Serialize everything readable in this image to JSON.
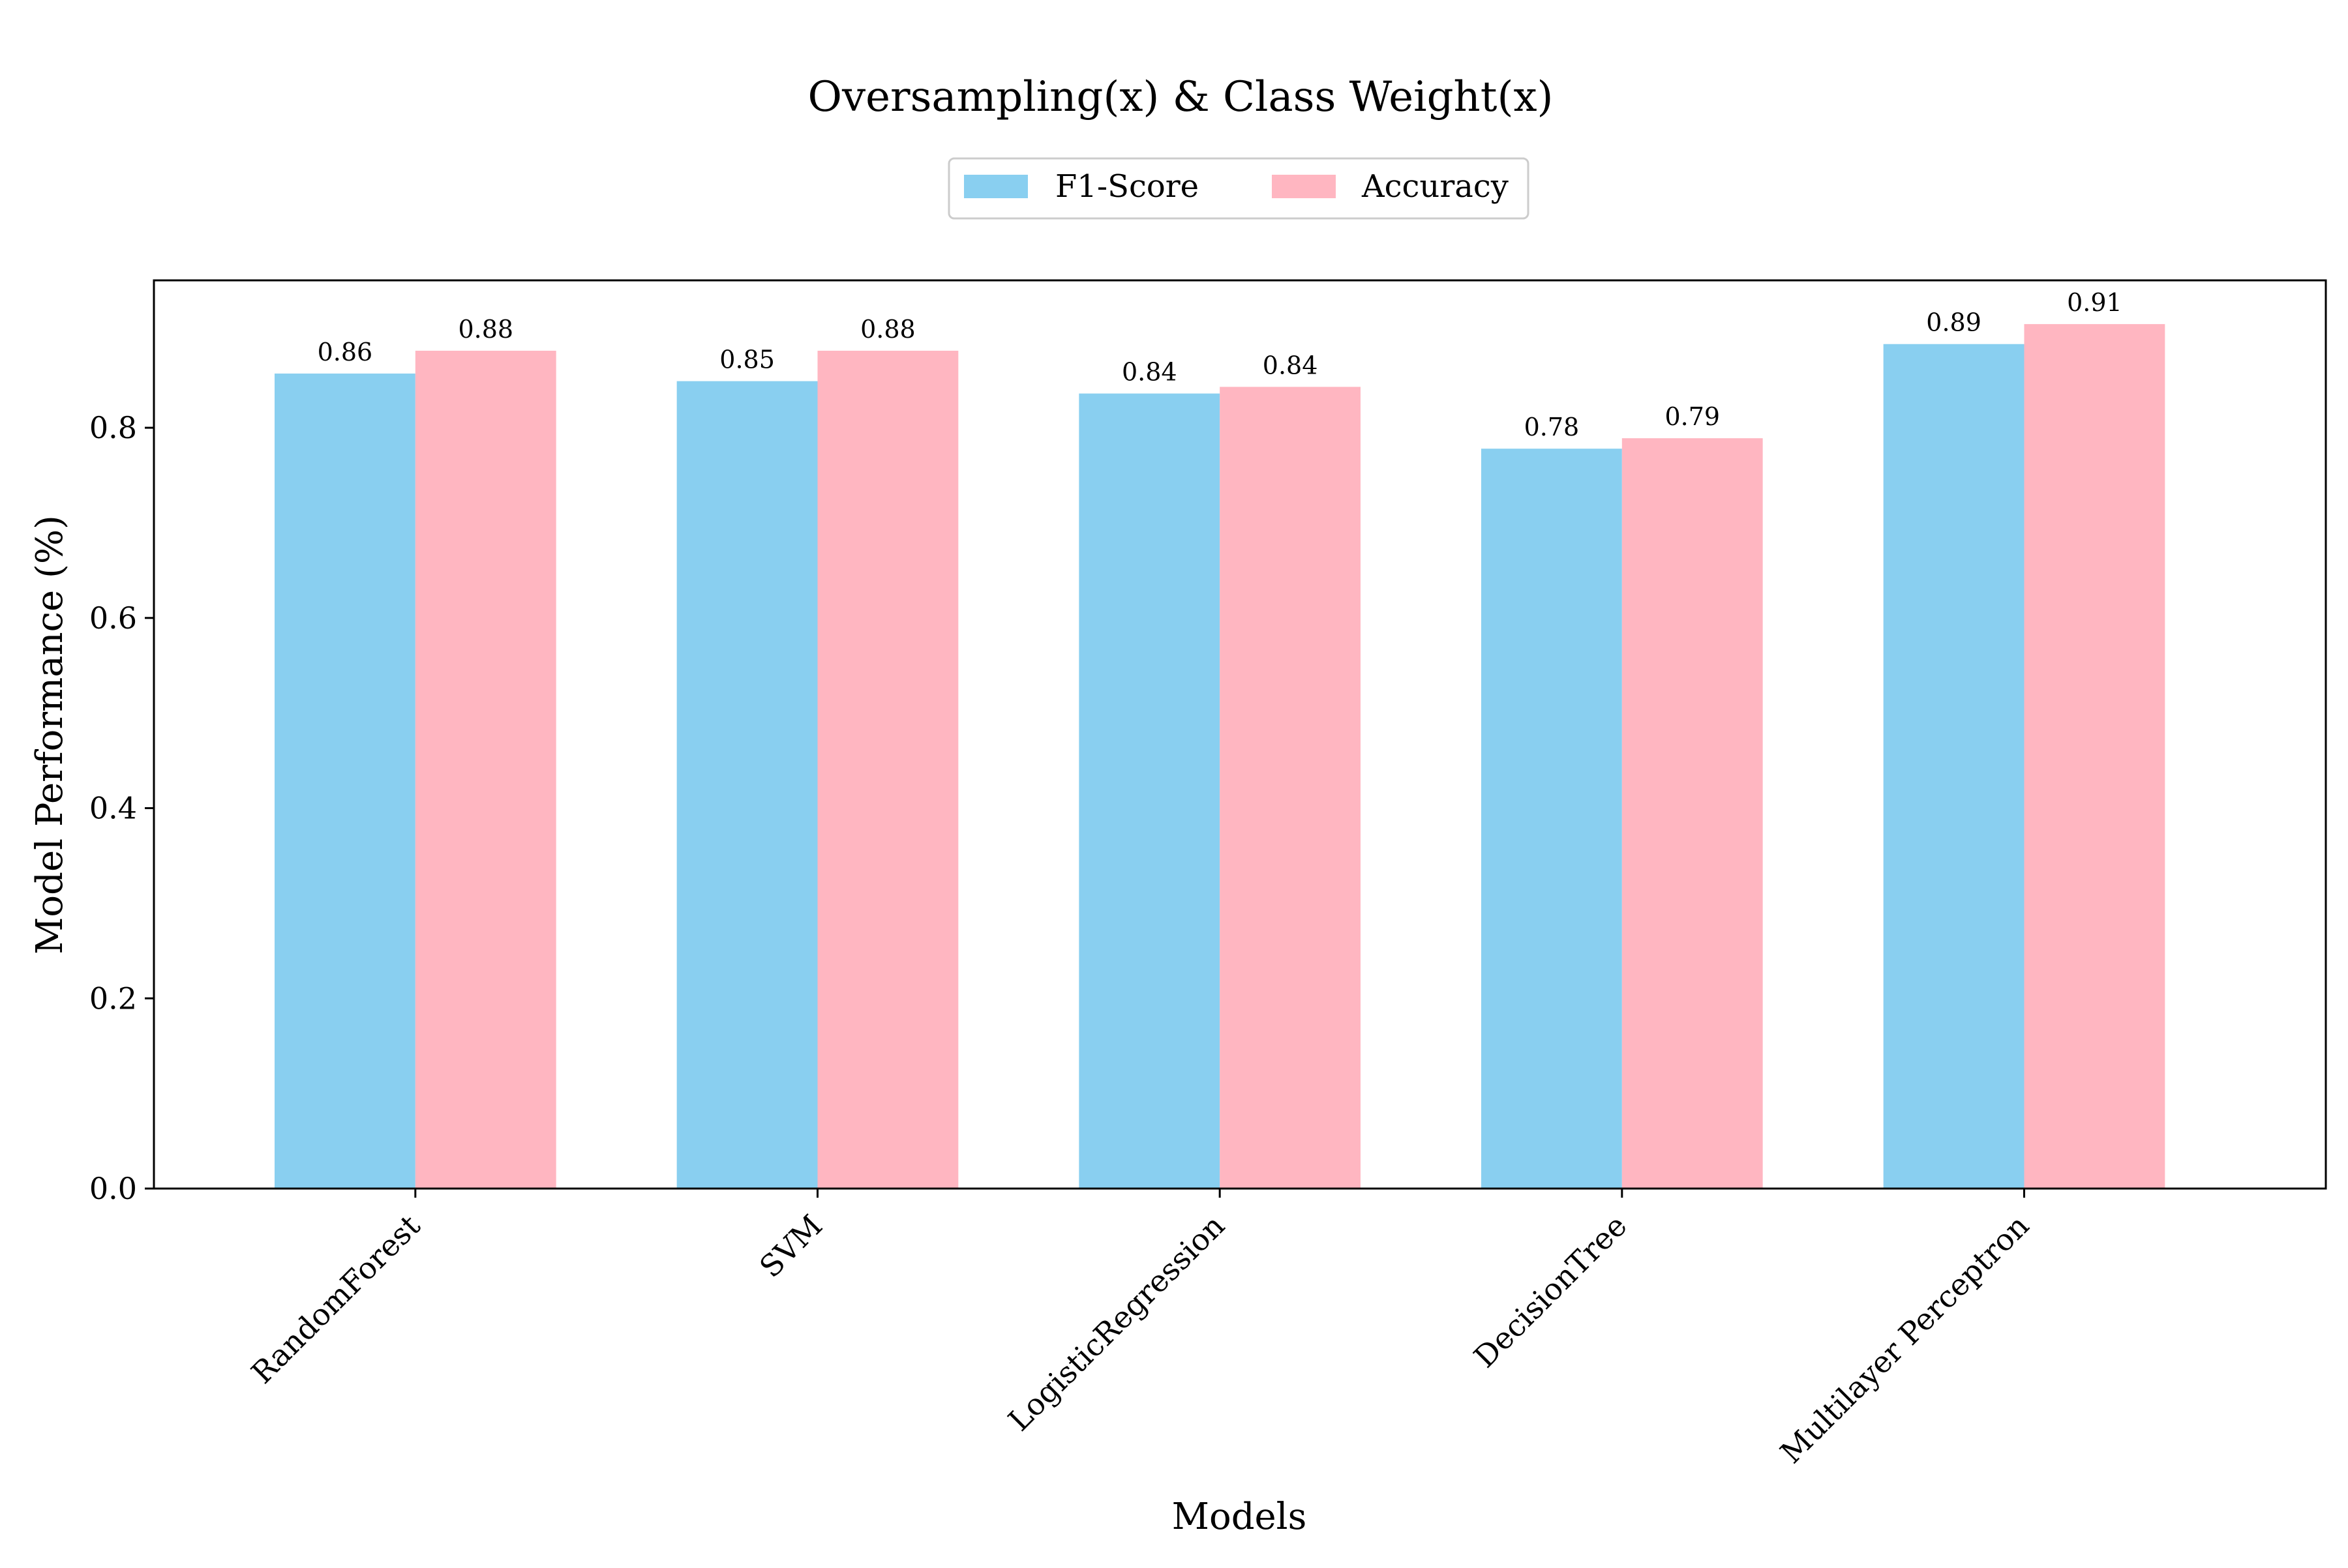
{
  "chart_data": {
    "type": "bar",
    "title": "Oversampling(x) & Class Weight(x)",
    "xlabel": "Models",
    "ylabel": "Model Performance (%)",
    "categories": [
      "RandomForest",
      "SVM",
      "LogisticRegression",
      "DecisionTree",
      "Multilayer Perceptron"
    ],
    "series": [
      {
        "name": "F1-Score",
        "color": "#89CFF0",
        "values": [
          0.857,
          0.849,
          0.836,
          0.778,
          0.888
        ],
        "labels": [
          "0.86",
          "0.85",
          "0.84",
          "0.78",
          "0.89"
        ]
      },
      {
        "name": "Accuracy",
        "color": "#FFB6C1",
        "values": [
          0.881,
          0.881,
          0.843,
          0.789,
          0.909
        ],
        "labels": [
          "0.88",
          "0.88",
          "0.84",
          "0.79",
          "0.91"
        ]
      }
    ],
    "ylim": [
      0,
      0.955
    ],
    "yticks": [
      0.0,
      0.2,
      0.4,
      0.6,
      0.8
    ],
    "ytick_labels": [
      "0.0",
      "0.2",
      "0.4",
      "0.6",
      "0.8"
    ],
    "grid": false,
    "legend_position": "top-center"
  }
}
